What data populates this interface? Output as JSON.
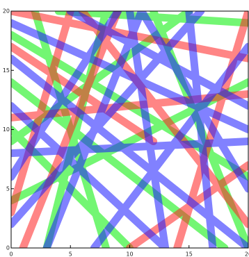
{
  "chart_data": {
    "type": "line",
    "xlim": [
      0,
      20
    ],
    "ylim": [
      0,
      20
    ],
    "xticks": [
      0,
      5,
      10,
      15,
      20
    ],
    "yticks": [
      0,
      5,
      10,
      15,
      20
    ],
    "series": [
      {
        "color": "#00ee00",
        "x": [
          0,
          20,
          null,
          2,
          8,
          null,
          0,
          20,
          null,
          12,
          20,
          null,
          0,
          10,
          null,
          4,
          20,
          null,
          0,
          18,
          null,
          8,
          3,
          null,
          0,
          15
        ],
        "values": [
          18,
          6,
          null,
          20,
          0,
          null,
          4,
          14,
          null,
          20,
          0,
          null,
          10,
          0,
          null,
          20,
          19,
          null,
          14,
          0,
          null,
          20,
          0,
          null,
          9,
          20
        ]
      },
      {
        "color": "#ff2020",
        "x": [
          0,
          20,
          null,
          6,
          20,
          null,
          1,
          9,
          null,
          0,
          20,
          null,
          14,
          20,
          null,
          0,
          5,
          null,
          10,
          20,
          null,
          0,
          12
        ],
        "values": [
          20,
          16,
          null,
          20,
          2,
          null,
          0,
          20,
          null,
          11,
          13,
          null,
          0,
          20,
          null,
          3,
          20,
          null,
          0,
          7,
          null,
          17,
          9
        ]
      },
      {
        "color": "#1a1aff",
        "x": [
          0,
          20,
          null,
          3,
          11,
          null,
          10,
          13,
          null,
          0,
          20,
          null,
          5,
          20,
          null,
          0,
          16,
          null,
          11,
          20,
          null,
          0,
          13,
          null,
          7,
          20,
          null,
          0,
          20,
          null,
          15,
          17,
          null,
          0,
          9
        ],
        "values": [
          8,
          9,
          null,
          0,
          20,
          null,
          20,
          0,
          null,
          16,
          0,
          null,
          20,
          12,
          null,
          2,
          20,
          null,
          20,
          5,
          null,
          12,
          0,
          null,
          0,
          17,
          null,
          19,
          10,
          null,
          20,
          0,
          null,
          6,
          20
        ]
      }
    ]
  }
}
